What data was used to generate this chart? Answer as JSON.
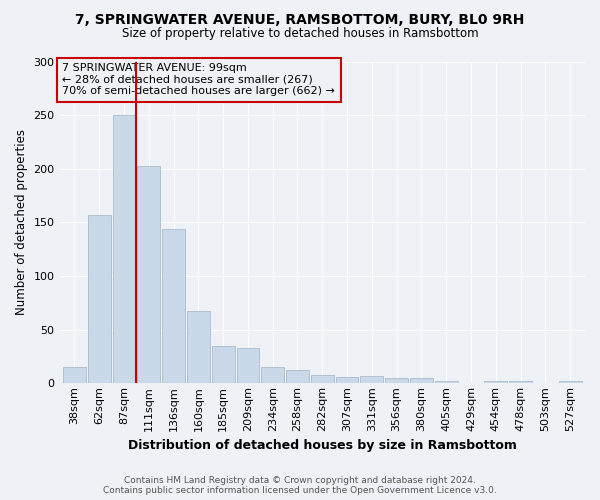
{
  "title": "7, SPRINGWATER AVENUE, RAMSBOTTOM, BURY, BL0 9RH",
  "subtitle": "Size of property relative to detached houses in Ramsbottom",
  "xlabel": "Distribution of detached houses by size in Ramsbottom",
  "ylabel": "Number of detached properties",
  "footer_line1": "Contains HM Land Registry data © Crown copyright and database right 2024.",
  "footer_line2": "Contains public sector information licensed under the Open Government Licence v3.0.",
  "annotation_line1": "7 SPRINGWATER AVENUE: 99sqm",
  "annotation_line2": "← 28% of detached houses are smaller (267)",
  "annotation_line3": "70% of semi-detached houses are larger (662) →",
  "bar_color": "#c9d9ea",
  "bar_edge_color": "#aabccc",
  "marker_color": "#cc0000",
  "background_color": "#eef2f7",
  "grid_color": "#ffffff",
  "categories": [
    "38sqm",
    "62sqm",
    "87sqm",
    "111sqm",
    "136sqm",
    "160sqm",
    "185sqm",
    "209sqm",
    "234sqm",
    "258sqm",
    "282sqm",
    "307sqm",
    "331sqm",
    "356sqm",
    "380sqm",
    "405sqm",
    "429sqm",
    "454sqm",
    "478sqm",
    "503sqm",
    "527sqm"
  ],
  "values": [
    15,
    157,
    250,
    203,
    144,
    67,
    35,
    33,
    15,
    12,
    8,
    6,
    7,
    5,
    5,
    2,
    0,
    2,
    2,
    0,
    2
  ],
  "marker_after_index": 2,
  "ylim": [
    0,
    300
  ],
  "yticks": [
    0,
    50,
    100,
    150,
    200,
    250,
    300
  ]
}
